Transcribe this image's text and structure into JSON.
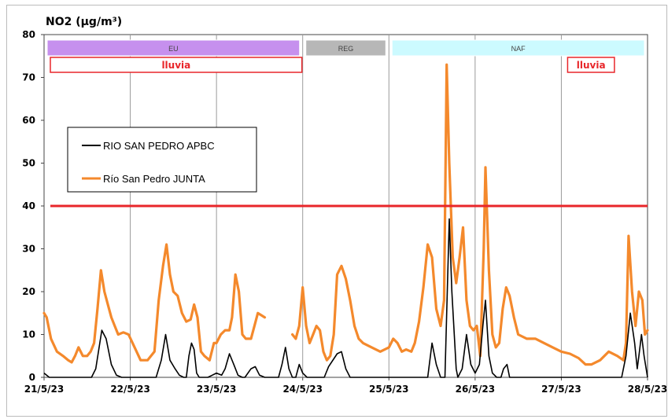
{
  "chart_data": {
    "type": "line",
    "title": "NO2  (µg/m³)",
    "xlabel": "",
    "ylabel": "",
    "ylim": [
      0,
      80
    ],
    "yticks": [
      "0",
      "10",
      "20",
      "30",
      "40",
      "50",
      "60",
      "70",
      "80"
    ],
    "xlim": [
      "21/5/23",
      "28/5/23"
    ],
    "xticks": [
      "21/5/23",
      "22/5/23",
      "23/5/23",
      "24/5/23",
      "25/5/23",
      "26/5/23",
      "27/5/23",
      "28/5/23"
    ],
    "grid": "vertical",
    "legend_position": "left",
    "reference_line": {
      "value": 40,
      "color": "#e8262a"
    },
    "episodes": [
      {
        "label": "EU",
        "from": "21/5/23 00:00",
        "to": "23/5/23 23:00",
        "color": "#c690ee"
      },
      {
        "label": "REG",
        "from": "24/5/23 00:00",
        "to": "24/5/23 23:00",
        "color": "#b7b7b7"
      },
      {
        "label": "NAF",
        "from": "25/5/23 00:00",
        "to": "27/5/23 23:00",
        "color": "#ccfaff"
      }
    ],
    "rain_labels": [
      {
        "label": "lluvia",
        "from": "21/5/23 00:00",
        "to": "23/5/23 23:00"
      },
      {
        "label": "lluvia",
        "from": "27/5/23 00:00",
        "to": "27/5/23 14:00"
      }
    ],
    "x_unit": "days since 21/5/23 00:00",
    "series": [
      {
        "name": "RIO SAN PEDRO APBC",
        "color": "#000000",
        "points": [
          [
            0,
            1
          ],
          [
            0.06,
            0
          ],
          [
            0.55,
            0
          ],
          [
            0.6,
            2
          ],
          [
            0.67,
            11
          ],
          [
            0.72,
            9
          ],
          [
            0.78,
            3
          ],
          [
            0.84,
            0.5
          ],
          [
            0.9,
            0
          ],
          [
            1.3,
            0
          ],
          [
            1.36,
            4
          ],
          [
            1.41,
            10
          ],
          [
            1.46,
            4
          ],
          [
            1.52,
            2
          ],
          [
            1.57,
            0.5
          ],
          [
            1.62,
            0
          ],
          [
            1.65,
            0
          ],
          [
            1.68,
            5
          ],
          [
            1.71,
            8
          ],
          [
            1.74,
            6.5
          ],
          [
            1.77,
            1
          ],
          [
            1.8,
            0
          ],
          [
            1.9,
            0
          ],
          [
            1.95,
            0.5
          ],
          [
            2.0,
            1
          ],
          [
            2.06,
            0.5
          ],
          [
            2.1,
            2
          ],
          [
            2.15,
            5.5
          ],
          [
            2.2,
            3
          ],
          [
            2.25,
            0.5
          ],
          [
            2.3,
            0
          ],
          [
            2.33,
            0
          ],
          [
            2.4,
            2
          ],
          [
            2.45,
            2.5
          ],
          [
            2.5,
            0.5
          ],
          [
            2.56,
            0
          ],
          [
            2.72,
            0
          ],
          [
            2.76,
            3
          ],
          [
            2.8,
            7
          ],
          [
            2.84,
            2
          ],
          [
            2.88,
            0
          ],
          [
            2.92,
            0
          ],
          [
            2.96,
            3
          ],
          [
            3.0,
            1
          ],
          [
            3.05,
            0
          ],
          [
            3.1,
            0
          ],
          [
            3.25,
            0
          ],
          [
            3.3,
            2.5
          ],
          [
            3.4,
            5.5
          ],
          [
            3.45,
            6
          ],
          [
            3.5,
            2
          ],
          [
            3.55,
            0
          ],
          [
            4.45,
            0
          ],
          [
            4.5,
            8
          ],
          [
            4.55,
            3
          ],
          [
            4.6,
            0
          ],
          [
            4.65,
            0
          ],
          [
            4.7,
            37
          ],
          [
            4.73,
            20
          ],
          [
            4.78,
            2
          ],
          [
            4.8,
            0
          ],
          [
            4.85,
            2
          ],
          [
            4.9,
            10
          ],
          [
            4.95,
            3
          ],
          [
            5.0,
            1
          ],
          [
            5.05,
            3
          ],
          [
            5.09,
            12
          ],
          [
            5.12,
            18
          ],
          [
            5.16,
            5
          ],
          [
            5.2,
            1
          ],
          [
            5.25,
            0
          ],
          [
            5.3,
            0
          ],
          [
            5.33,
            2
          ],
          [
            5.37,
            3
          ],
          [
            5.4,
            0
          ],
          [
            5.5,
            0
          ],
          [
            6.0,
            0
          ],
          [
            6.7,
            0
          ],
          [
            6.75,
            5
          ],
          [
            6.8,
            15
          ],
          [
            6.85,
            8
          ],
          [
            6.88,
            2
          ],
          [
            6.9,
            5
          ],
          [
            6.93,
            10
          ],
          [
            6.96,
            5
          ],
          [
            7.0,
            0
          ]
        ]
      },
      {
        "name": "Río San Pedro JUNTA",
        "color": "#f4892c",
        "segments": [
          [
            [
              0,
              15
            ],
            [
              0.03,
              14
            ],
            [
              0.08,
              9
            ],
            [
              0.15,
              6
            ],
            [
              0.22,
              5
            ],
            [
              0.28,
              4
            ],
            [
              0.32,
              3.5
            ],
            [
              0.36,
              5
            ],
            [
              0.4,
              7
            ],
            [
              0.45,
              5
            ],
            [
              0.5,
              5
            ],
            [
              0.54,
              6
            ],
            [
              0.58,
              8
            ],
            [
              0.62,
              16
            ],
            [
              0.66,
              25
            ],
            [
              0.7,
              20
            ],
            [
              0.74,
              17
            ],
            [
              0.78,
              14
            ],
            [
              0.82,
              12
            ],
            [
              0.86,
              10
            ],
            [
              0.92,
              10.5
            ],
            [
              0.98,
              10
            ],
            [
              1.05,
              7
            ],
            [
              1.12,
              4
            ],
            [
              1.2,
              4
            ],
            [
              1.28,
              6
            ],
            [
              1.33,
              18
            ],
            [
              1.38,
              26
            ],
            [
              1.42,
              31
            ],
            [
              1.46,
              24
            ],
            [
              1.5,
              20
            ],
            [
              1.55,
              19
            ],
            [
              1.6,
              15
            ],
            [
              1.65,
              13
            ],
            [
              1.7,
              13.5
            ],
            [
              1.74,
              17
            ],
            [
              1.78,
              14
            ],
            [
              1.82,
              6
            ],
            [
              1.86,
              5
            ],
            [
              1.92,
              4
            ],
            [
              1.97,
              8
            ],
            [
              2.0,
              8
            ],
            [
              2.05,
              10
            ],
            [
              2.1,
              11
            ],
            [
              2.15,
              11
            ],
            [
              2.18,
              14
            ],
            [
              2.22,
              24
            ],
            [
              2.26,
              20
            ],
            [
              2.3,
              10
            ],
            [
              2.34,
              9
            ],
            [
              2.4,
              9
            ],
            [
              2.44,
              12
            ],
            [
              2.48,
              15
            ],
            [
              2.52,
              14.5
            ],
            [
              2.56,
              14
            ]
          ],
          [
            [
              2.88,
              10
            ],
            [
              2.92,
              9
            ],
            [
              2.96,
              12
            ],
            [
              3.0,
              21
            ],
            [
              3.04,
              12
            ],
            [
              3.08,
              8
            ],
            [
              3.12,
              10
            ],
            [
              3.16,
              12
            ],
            [
              3.2,
              11
            ],
            [
              3.24,
              6
            ],
            [
              3.28,
              4
            ],
            [
              3.32,
              5
            ],
            [
              3.36,
              10
            ],
            [
              3.4,
              24
            ],
            [
              3.45,
              26
            ],
            [
              3.5,
              23
            ],
            [
              3.55,
              18
            ],
            [
              3.6,
              12
            ],
            [
              3.65,
              9
            ],
            [
              3.7,
              8
            ],
            [
              3.8,
              7
            ],
            [
              3.9,
              6
            ],
            [
              4.0,
              7
            ],
            [
              4.05,
              9
            ],
            [
              4.1,
              8
            ],
            [
              4.15,
              6
            ],
            [
              4.2,
              6.5
            ],
            [
              4.26,
              6
            ],
            [
              4.3,
              8
            ],
            [
              4.35,
              13
            ],
            [
              4.4,
              21
            ],
            [
              4.45,
              31
            ],
            [
              4.5,
              28
            ],
            [
              4.55,
              16
            ],
            [
              4.6,
              12
            ],
            [
              4.64,
              18
            ],
            [
              4.67,
              73
            ],
            [
              4.7,
              50
            ],
            [
              4.74,
              28
            ],
            [
              4.78,
              22
            ],
            [
              4.82,
              28
            ],
            [
              4.86,
              35
            ],
            [
              4.9,
              18
            ],
            [
              4.94,
              12
            ],
            [
              4.98,
              11
            ],
            [
              5.02,
              12
            ],
            [
              5.06,
              5
            ],
            [
              5.1,
              30
            ],
            [
              5.12,
              49
            ],
            [
              5.16,
              25
            ],
            [
              5.2,
              10
            ],
            [
              5.24,
              7
            ],
            [
              5.28,
              8
            ],
            [
              5.32,
              16
            ],
            [
              5.36,
              21
            ],
            [
              5.4,
              19
            ],
            [
              5.45,
              14
            ],
            [
              5.5,
              10
            ],
            [
              5.6,
              9
            ],
            [
              5.7,
              9
            ],
            [
              5.8,
              8
            ],
            [
              5.9,
              7
            ],
            [
              6.0,
              6
            ],
            [
              6.1,
              5.5
            ],
            [
              6.2,
              4.5
            ],
            [
              6.28,
              3
            ],
            [
              6.35,
              3
            ],
            [
              6.45,
              4
            ],
            [
              6.55,
              6
            ],
            [
              6.65,
              5
            ],
            [
              6.72,
              4
            ],
            [
              6.75,
              8
            ],
            [
              6.78,
              33
            ],
            [
              6.82,
              20
            ],
            [
              6.86,
              12
            ],
            [
              6.9,
              20
            ],
            [
              6.94,
              18
            ],
            [
              6.97,
              10
            ],
            [
              7.0,
              11
            ]
          ]
        ]
      }
    ]
  }
}
